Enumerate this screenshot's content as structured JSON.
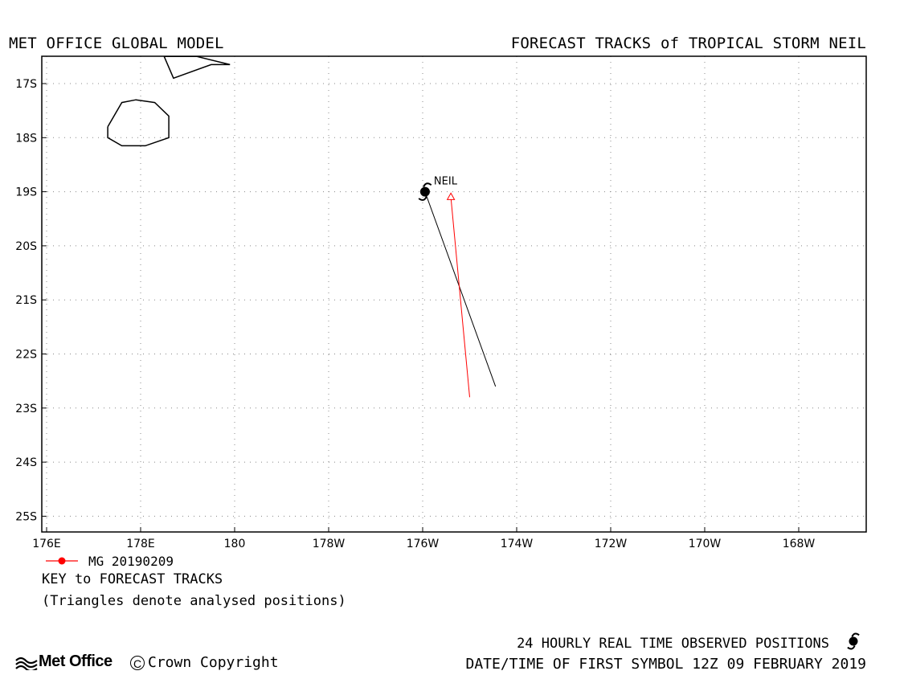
{
  "header": {
    "left_title": "MET OFFICE GLOBAL MODEL",
    "right_title": "FORECAST TRACKS of TROPICAL STORM NEIL"
  },
  "map": {
    "lon_range": [
      176,
      193.5
    ],
    "lat_range": [
      -25.5,
      -16.5
    ],
    "lat_ticks": [
      {
        "value": -17,
        "label": "17S"
      },
      {
        "value": -18,
        "label": "18S"
      },
      {
        "value": -19,
        "label": "19S"
      },
      {
        "value": -20,
        "label": "20S"
      },
      {
        "value": -21,
        "label": "21S"
      },
      {
        "value": -22,
        "label": "22S"
      },
      {
        "value": -23,
        "label": "23S"
      },
      {
        "value": -24,
        "label": "24S"
      },
      {
        "value": -25,
        "label": "25S"
      }
    ],
    "lon_ticks": [
      {
        "value": 176,
        "label": "176E"
      },
      {
        "value": 178,
        "label": "178E"
      },
      {
        "value": 180,
        "label": "180"
      },
      {
        "value": 182,
        "label": "178W"
      },
      {
        "value": 184,
        "label": "176W"
      },
      {
        "value": 186,
        "label": "174W"
      },
      {
        "value": 188,
        "label": "172W"
      },
      {
        "value": 190,
        "label": "170W"
      },
      {
        "value": 192,
        "label": "168W"
      }
    ],
    "coastlines": [
      [
        [
          177.3,
          -17.8
        ],
        [
          177.6,
          -17.35
        ],
        [
          177.9,
          -17.3
        ],
        [
          178.3,
          -17.35
        ],
        [
          178.6,
          -17.6
        ],
        [
          178.6,
          -18.0
        ],
        [
          178.1,
          -18.15
        ],
        [
          177.6,
          -18.15
        ],
        [
          177.3,
          -18.0
        ],
        [
          177.3,
          -17.8
        ]
      ],
      [
        [
          178.5,
          -16.5
        ],
        [
          179.2,
          -16.5
        ],
        [
          179.9,
          -16.65
        ],
        [
          179.5,
          -16.65
        ],
        [
          178.7,
          -16.9
        ],
        [
          178.5,
          -16.5
        ]
      ]
    ],
    "storm": {
      "name": "NEIL",
      "observed_position": {
        "lon": 184.05,
        "lat": -19.0
      }
    },
    "tracks": [
      {
        "color": "#000000",
        "points": [
          [
            184.05,
            -19.0
          ],
          [
            185.55,
            -22.6
          ]
        ]
      },
      {
        "color": "#ff0000",
        "analysed": [
          184.6,
          -19.1
        ],
        "points": [
          [
            184.6,
            -19.1
          ],
          [
            185.0,
            -22.8
          ]
        ]
      }
    ]
  },
  "legend": {
    "run_label": "MG 20190209",
    "run_color": "#ff0000",
    "key_label": "KEY to FORECAST TRACKS",
    "note": "(Triangles denote analysed positions)"
  },
  "footer": {
    "observed_text": "24 HOURLY REAL TIME OBSERVED POSITIONS",
    "date_text": "DATE/TIME OF FIRST SYMBOL 12Z 09 FEBRUARY 2019",
    "logo_text": "Met Office",
    "copyright_text": "Crown Copyright",
    "copyright_symbol": "C"
  }
}
